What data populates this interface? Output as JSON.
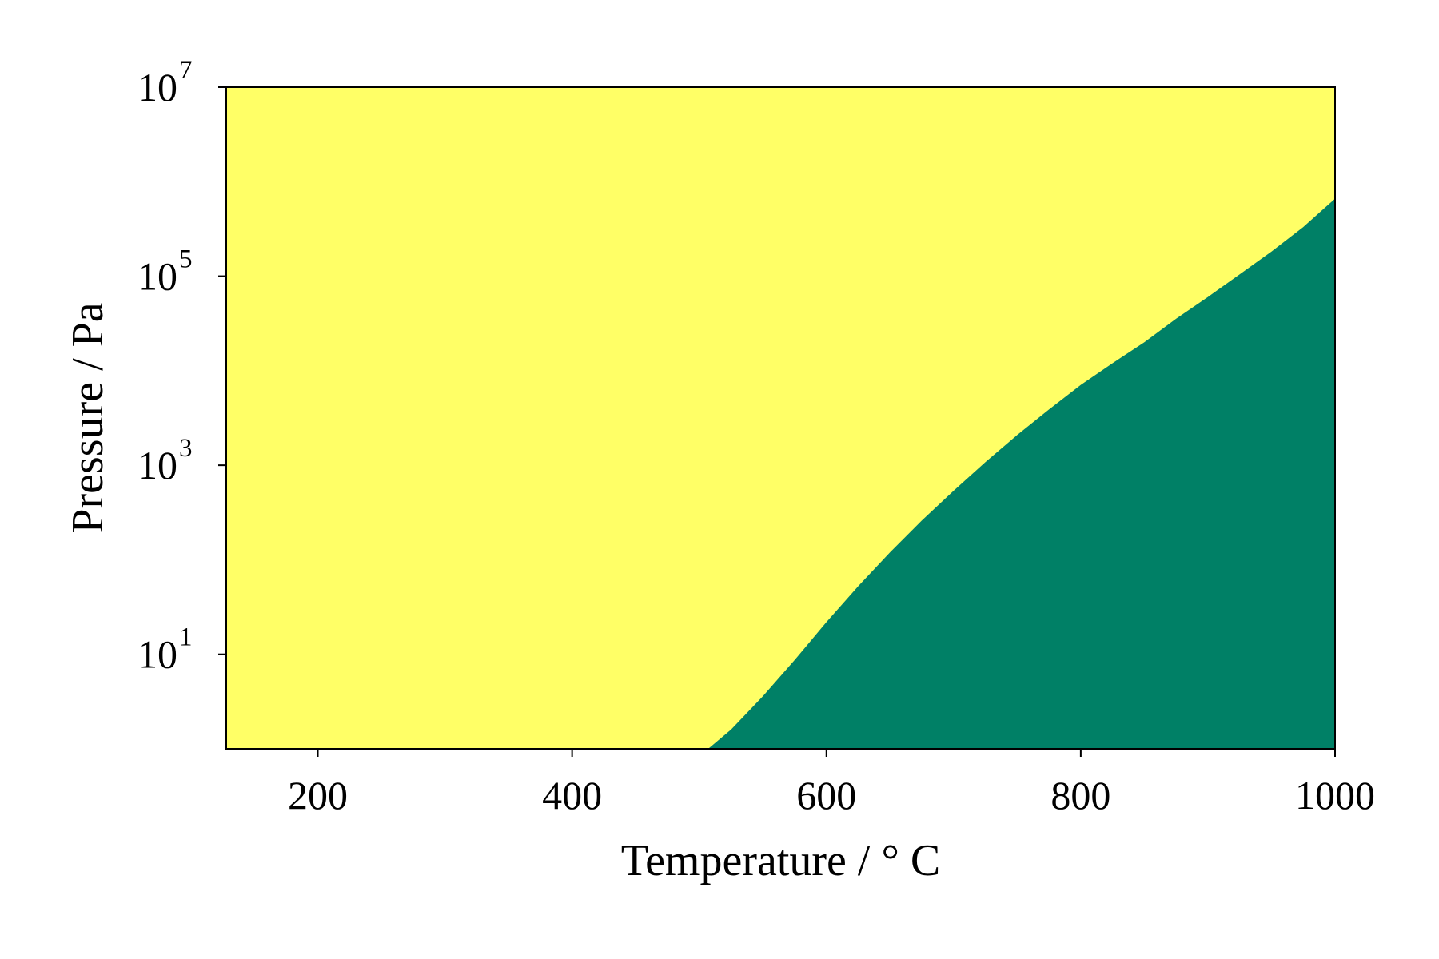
{
  "chart_data": {
    "type": "area",
    "title": "",
    "xlabel": "Temperature / ° C",
    "ylabel": "Pressure / Pa",
    "xlim": [
      128,
      1000
    ],
    "ylim": [
      1,
      10000000
    ],
    "y_scale": "log",
    "x_ticks": [
      200,
      400,
      600,
      800,
      1000
    ],
    "y_ticks": [
      {
        "base": "10",
        "exp": "1",
        "value": 10
      },
      {
        "base": "10",
        "exp": "3",
        "value": 1000
      },
      {
        "base": "10",
        "exp": "5",
        "value": 100000
      },
      {
        "base": "10",
        "exp": "7",
        "value": 10000000
      }
    ],
    "grid": false,
    "legend": "none",
    "regions": [
      {
        "color": "#ffff66",
        "position": "above boundary"
      },
      {
        "color": "#008066",
        "position": "below boundary"
      }
    ],
    "boundary": {
      "x": [
        507,
        525,
        550,
        575,
        600,
        625,
        650,
        675,
        700,
        725,
        750,
        775,
        800,
        825,
        850,
        875,
        900,
        925,
        950,
        975,
        1000
      ],
      "y": [
        1.0,
        1.6,
        3.6,
        8.7,
        21.9,
        52.5,
        120,
        260,
        537,
        1080,
        2090,
        3890,
        7080,
        12000,
        20000,
        35500,
        60300,
        104700,
        182000,
        331000,
        660700
      ]
    }
  }
}
